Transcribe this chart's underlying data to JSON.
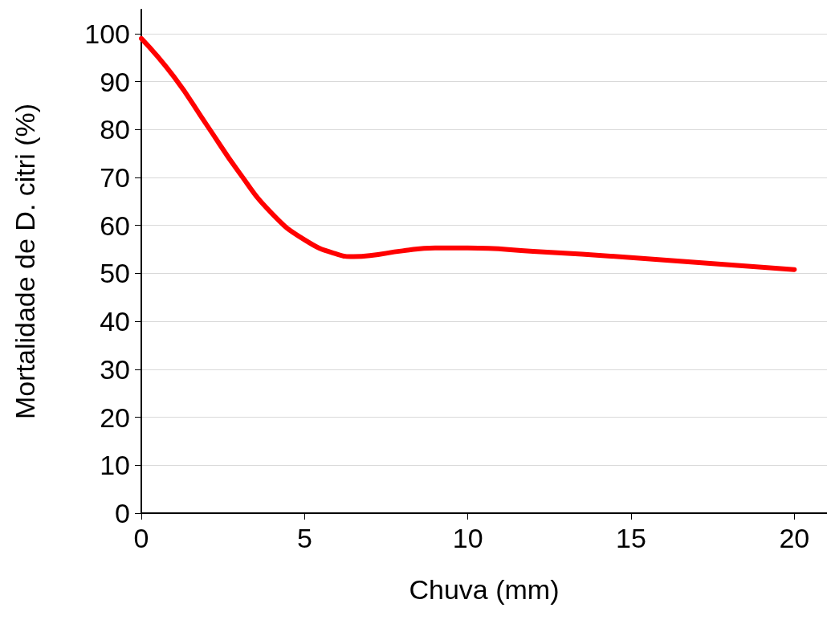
{
  "chart_data": {
    "type": "line",
    "xlabel": "Chuva (mm)",
    "ylabel": "Mortalidade de D. citri (%)",
    "x": [
      0,
      1,
      2,
      3,
      4,
      5,
      6,
      6.5,
      7,
      8,
      9,
      10,
      12,
      15,
      20
    ],
    "series": [
      {
        "color": "#ff0000",
        "values": [
          99,
          91,
          81,
          71,
          62.5,
          57,
          54,
          53.5,
          53.7,
          54.7,
          55.3,
          55.3,
          54.6,
          53.3,
          50.8
        ]
      }
    ],
    "xlim": [
      0,
      21
    ],
    "xticks": [
      0,
      5,
      10,
      15,
      20
    ],
    "ylim": [
      0,
      105
    ],
    "yticks": [
      0,
      10,
      20,
      30,
      40,
      50,
      60,
      70,
      80,
      90,
      100
    ],
    "grid": "y",
    "marker": "none",
    "line_style": "solid"
  }
}
